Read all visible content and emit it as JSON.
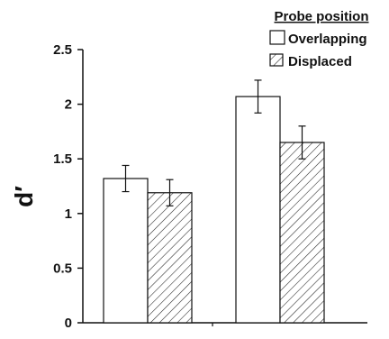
{
  "chart_data": {
    "type": "bar",
    "title": "",
    "xlabel": "",
    "ylabel": "d′",
    "ylim": [
      0,
      2.5
    ],
    "yticks": [
      0,
      0.5,
      1,
      1.5,
      2,
      2.5
    ],
    "ytick_labels": [
      "0",
      "0.5",
      "1",
      "1.5",
      "2",
      "2.5"
    ],
    "categories": [
      "",
      ""
    ],
    "grid": false,
    "legend": {
      "title": "Probe position",
      "placement": "top-right"
    },
    "series": [
      {
        "name": "Overlapping",
        "fill": "#ffffff",
        "pattern": "none",
        "values": [
          1.32,
          2.07
        ],
        "error": [
          0.12,
          0.15
        ]
      },
      {
        "name": "Displaced",
        "fill": "#ffffff",
        "pattern": "diagonal-hatch",
        "values": [
          1.19,
          1.65
        ],
        "error": [
          0.12,
          0.15
        ]
      }
    ]
  }
}
